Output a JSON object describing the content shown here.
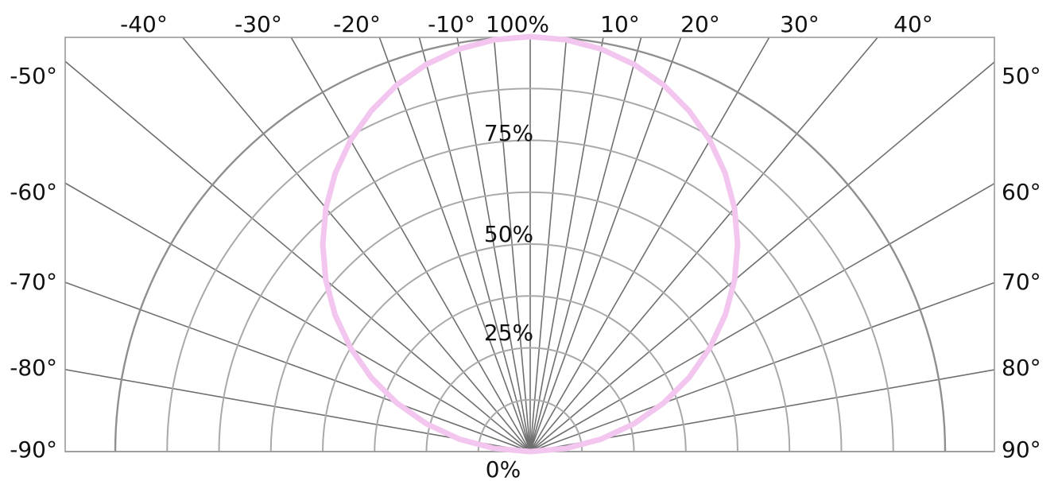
{
  "chart_data": {
    "type": "polar",
    "title": "",
    "angle_unit": "°",
    "angles": [
      -90,
      -85,
      -80,
      -75,
      -70,
      -65,
      -60,
      -55,
      -50,
      -45,
      -40,
      -35,
      -30,
      -25,
      -20,
      -15,
      -10,
      -5,
      0,
      5,
      10,
      15,
      20,
      25,
      30,
      35,
      40,
      45,
      50,
      55,
      60,
      65,
      70,
      75,
      80,
      85,
      90
    ],
    "radial_range": [
      0,
      100
    ],
    "radial_ticks": [
      {
        "value": 0,
        "label": "0%"
      },
      {
        "value": 25,
        "label": "25%"
      },
      {
        "value": 50,
        "label": "50%"
      },
      {
        "value": 75,
        "label": "75%"
      },
      {
        "value": 100,
        "label": "100%"
      }
    ],
    "radial_grid": [
      12.5,
      25,
      37.5,
      50,
      62.5,
      75,
      87.5,
      100
    ],
    "spoke_angles": [
      -90,
      -80,
      -70,
      -60,
      -50,
      -40,
      -30,
      -20,
      -15,
      -10,
      -5,
      0,
      5,
      10,
      15,
      20,
      30,
      40,
      50,
      60,
      70,
      80,
      90
    ],
    "top_angle_labels": [
      "-40°",
      "-30°",
      "-20°",
      "-10°",
      "10°",
      "20°",
      "30°",
      "40°"
    ],
    "left_angle_labels": [
      "-50°",
      "-60°",
      "-70°",
      "-80°",
      "-90°"
    ],
    "right_angle_labels": [
      "50°",
      "60°",
      "70°",
      "80°",
      "90°"
    ],
    "series": [
      {
        "color": "#f2c6ee",
        "values": [
          0,
          8.7,
          17.4,
          25.9,
          34.2,
          42.3,
          50,
          57.4,
          64.3,
          70.7,
          76.6,
          81.9,
          86.6,
          90.6,
          94,
          96.6,
          98.5,
          99.6,
          100,
          99.6,
          98.5,
          96.6,
          94,
          90.6,
          86.6,
          81.9,
          76.6,
          70.7,
          64.3,
          57.4,
          50,
          42.3,
          34.2,
          25.9,
          17.4,
          8.7,
          0
        ]
      }
    ],
    "grid": true,
    "colors": {
      "spoke": "#6f6f6f",
      "arc": "#a9a9a9",
      "outer_arc": "#8f8f8f",
      "frame": "#9a9a9a",
      "text": "#111111"
    }
  }
}
